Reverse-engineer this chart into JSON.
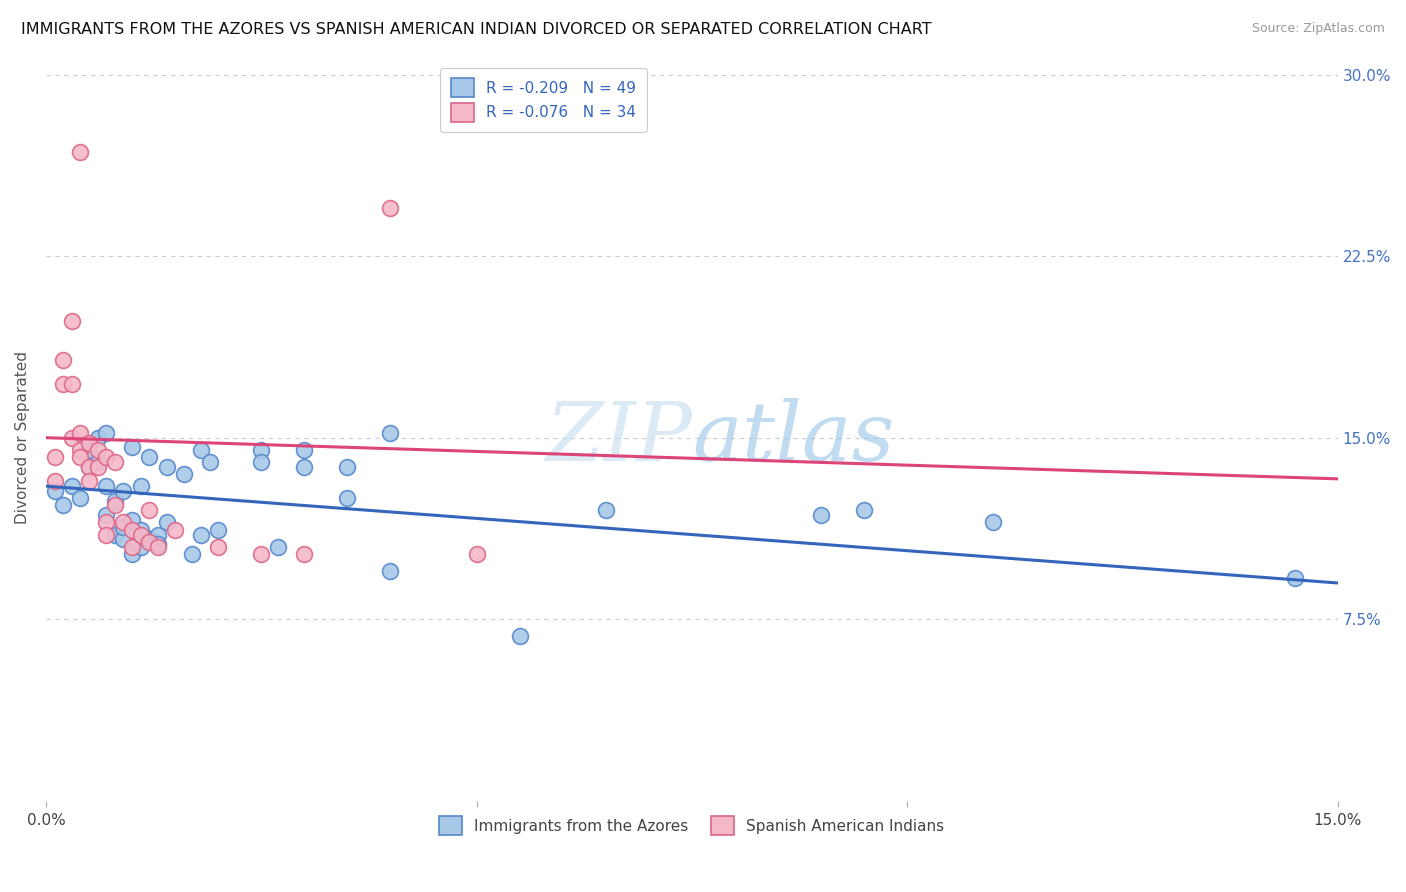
{
  "title": "IMMIGRANTS FROM THE AZORES VS SPANISH AMERICAN INDIAN DIVORCED OR SEPARATED CORRELATION CHART",
  "source": "Source: ZipAtlas.com",
  "ylabel": "Divorced or Separated",
  "x_min": 0.0,
  "x_max": 0.15,
  "y_min": 0.0,
  "y_max": 0.3,
  "x_ticks": [
    0.0,
    0.05,
    0.1,
    0.15
  ],
  "x_tick_labels": [
    "0.0%",
    "",
    "",
    "15.0%"
  ],
  "y_ticks": [
    0.0,
    0.075,
    0.15,
    0.225,
    0.3
  ],
  "y_tick_labels": [
    "",
    "7.5%",
    "15.0%",
    "22.5%",
    "30.0%"
  ],
  "legend1_label": "R = -0.209   N = 49",
  "legend2_label": "R = -0.076   N = 34",
  "bottom_legend1": "Immigrants from the Azores",
  "bottom_legend2": "Spanish American Indians",
  "watermark_zip": "ZIP",
  "watermark_atlas": "atlas",
  "blue_color": "#a8c8e8",
  "pink_color": "#f5b8c8",
  "blue_edge_color": "#5588cc",
  "pink_edge_color": "#dd6688",
  "blue_line_color": "#3366bb",
  "pink_line_color": "#dd4477",
  "blue_line_y0": 0.13,
  "blue_line_y1": 0.09,
  "pink_line_y0": 0.15,
  "pink_line_y1": 0.133,
  "blue_scatter": [
    [
      0.001,
      0.128
    ],
    [
      0.002,
      0.122
    ],
    [
      0.003,
      0.13
    ],
    [
      0.004,
      0.125
    ],
    [
      0.005,
      0.145
    ],
    [
      0.005,
      0.138
    ],
    [
      0.006,
      0.14
    ],
    [
      0.006,
      0.15
    ],
    [
      0.007,
      0.13
    ],
    [
      0.007,
      0.118
    ],
    [
      0.007,
      0.152
    ],
    [
      0.008,
      0.124
    ],
    [
      0.008,
      0.11
    ],
    [
      0.009,
      0.128
    ],
    [
      0.009,
      0.108
    ],
    [
      0.009,
      0.113
    ],
    [
      0.01,
      0.146
    ],
    [
      0.01,
      0.102
    ],
    [
      0.01,
      0.116
    ],
    [
      0.011,
      0.13
    ],
    [
      0.011,
      0.105
    ],
    [
      0.011,
      0.112
    ],
    [
      0.012,
      0.142
    ],
    [
      0.012,
      0.108
    ],
    [
      0.013,
      0.11
    ],
    [
      0.013,
      0.106
    ],
    [
      0.014,
      0.138
    ],
    [
      0.014,
      0.115
    ],
    [
      0.016,
      0.135
    ],
    [
      0.017,
      0.102
    ],
    [
      0.018,
      0.11
    ],
    [
      0.018,
      0.145
    ],
    [
      0.019,
      0.14
    ],
    [
      0.02,
      0.112
    ],
    [
      0.025,
      0.145
    ],
    [
      0.025,
      0.14
    ],
    [
      0.027,
      0.105
    ],
    [
      0.03,
      0.138
    ],
    [
      0.03,
      0.145
    ],
    [
      0.035,
      0.138
    ],
    [
      0.035,
      0.125
    ],
    [
      0.04,
      0.152
    ],
    [
      0.04,
      0.095
    ],
    [
      0.055,
      0.068
    ],
    [
      0.065,
      0.12
    ],
    [
      0.09,
      0.118
    ],
    [
      0.095,
      0.12
    ],
    [
      0.11,
      0.115
    ],
    [
      0.145,
      0.092
    ]
  ],
  "pink_scatter": [
    [
      0.001,
      0.142
    ],
    [
      0.001,
      0.132
    ],
    [
      0.002,
      0.182
    ],
    [
      0.002,
      0.172
    ],
    [
      0.003,
      0.198
    ],
    [
      0.003,
      0.172
    ],
    [
      0.003,
      0.15
    ],
    [
      0.004,
      0.145
    ],
    [
      0.004,
      0.152
    ],
    [
      0.004,
      0.142
    ],
    [
      0.005,
      0.148
    ],
    [
      0.005,
      0.138
    ],
    [
      0.005,
      0.132
    ],
    [
      0.006,
      0.145
    ],
    [
      0.006,
      0.138
    ],
    [
      0.007,
      0.142
    ],
    [
      0.007,
      0.115
    ],
    [
      0.007,
      0.11
    ],
    [
      0.008,
      0.14
    ],
    [
      0.008,
      0.122
    ],
    [
      0.009,
      0.115
    ],
    [
      0.01,
      0.112
    ],
    [
      0.01,
      0.105
    ],
    [
      0.011,
      0.11
    ],
    [
      0.012,
      0.107
    ],
    [
      0.012,
      0.12
    ],
    [
      0.013,
      0.105
    ],
    [
      0.015,
      0.112
    ],
    [
      0.02,
      0.105
    ],
    [
      0.025,
      0.102
    ],
    [
      0.03,
      0.102
    ],
    [
      0.05,
      0.102
    ],
    [
      0.004,
      0.268
    ],
    [
      0.04,
      0.245
    ]
  ]
}
